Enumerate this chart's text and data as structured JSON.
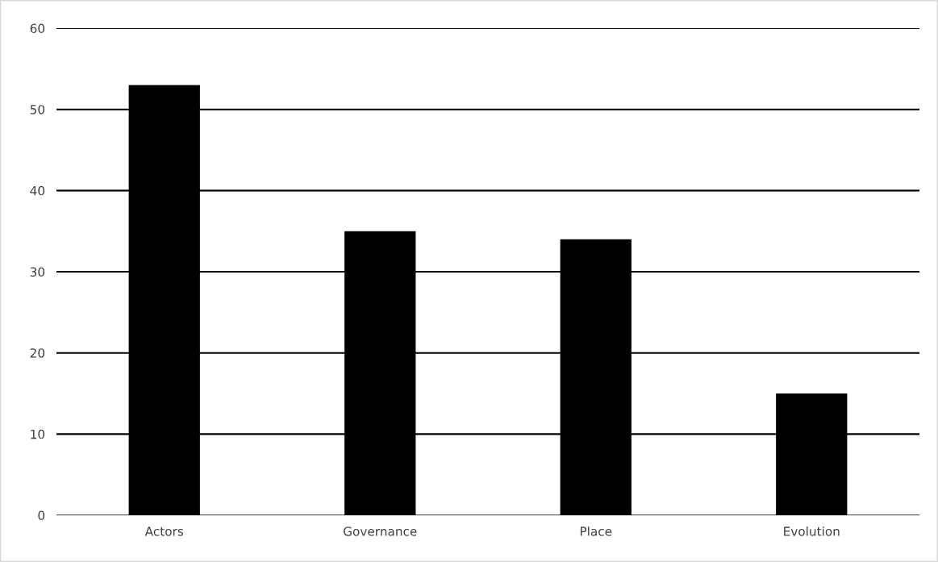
{
  "chart_data": {
    "type": "bar",
    "categories": [
      "Actors",
      "Governance",
      "Place",
      "Evolution"
    ],
    "values": [
      53,
      35,
      34,
      15
    ],
    "color": "#000000",
    "ylim": [
      0,
      60
    ],
    "yticks": [
      0,
      10,
      20,
      30,
      40,
      50,
      60
    ],
    "grid": "y",
    "legend": false
  }
}
